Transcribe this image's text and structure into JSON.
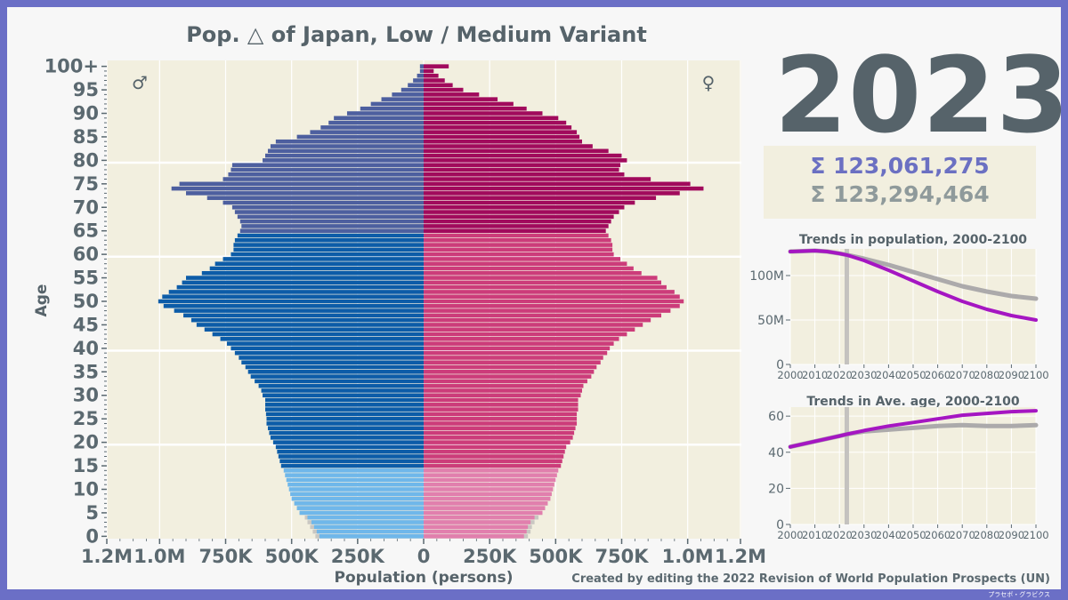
{
  "chart_data": [
    {
      "type": "population-pyramid",
      "title": "Pop. △ of Japan, Low / Medium Variant",
      "xlabel": "Population (persons)",
      "ylabel": "Age",
      "x_tick_labels": [
        "1.2M",
        "1.0M",
        "750K",
        "500K",
        "250K",
        "0",
        "250K",
        "500K",
        "750K",
        "1.0M",
        "1.2M"
      ],
      "x_tick_values": [
        -1200000,
        -1000000,
        -750000,
        -500000,
        -250000,
        0,
        250000,
        500000,
        750000,
        1000000,
        1200000
      ],
      "y_tick_labels": [
        "0",
        "5",
        "10",
        "15",
        "20",
        "25",
        "30",
        "35",
        "40",
        "45",
        "50",
        "55",
        "60",
        "65",
        "70",
        "75",
        "80",
        "85",
        "90",
        "95",
        "100+"
      ],
      "male_symbol": "♂",
      "female_symbol": "♀",
      "ages": [
        0,
        1,
        2,
        3,
        4,
        5,
        6,
        7,
        8,
        9,
        10,
        11,
        12,
        13,
        14,
        15,
        16,
        17,
        18,
        19,
        20,
        21,
        22,
        23,
        24,
        25,
        26,
        27,
        28,
        29,
        30,
        31,
        32,
        33,
        34,
        35,
        36,
        37,
        38,
        39,
        40,
        41,
        42,
        43,
        44,
        45,
        46,
        47,
        48,
        49,
        50,
        51,
        52,
        53,
        54,
        55,
        56,
        57,
        58,
        59,
        60,
        61,
        62,
        63,
        64,
        65,
        66,
        67,
        68,
        69,
        70,
        71,
        72,
        73,
        74,
        75,
        76,
        77,
        78,
        79,
        80,
        81,
        82,
        83,
        84,
        85,
        86,
        87,
        88,
        89,
        90,
        91,
        92,
        93,
        94,
        95,
        96,
        97,
        98,
        99,
        100
      ],
      "male": [
        410000,
        420000,
        430000,
        440000,
        450000,
        470000,
        480000,
        490000,
        500000,
        505000,
        510000,
        515000,
        520000,
        525000,
        530000,
        540000,
        545000,
        550000,
        555000,
        560000,
        570000,
        580000,
        585000,
        590000,
        595000,
        595000,
        597000,
        600000,
        600000,
        600000,
        610000,
        615000,
        625000,
        640000,
        655000,
        665000,
        675000,
        690000,
        700000,
        715000,
        730000,
        745000,
        770000,
        800000,
        830000,
        860000,
        880000,
        910000,
        945000,
        985000,
        1005000,
        990000,
        965000,
        935000,
        915000,
        900000,
        840000,
        810000,
        790000,
        760000,
        730000,
        720000,
        720000,
        715000,
        705000,
        695000,
        690000,
        695000,
        705000,
        715000,
        725000,
        760000,
        820000,
        900000,
        955000,
        925000,
        760000,
        740000,
        730000,
        725000,
        610000,
        600000,
        590000,
        580000,
        560000,
        480000,
        430000,
        390000,
        360000,
        340000,
        290000,
        240000,
        200000,
        160000,
        120000,
        85000,
        60000,
        40000,
        25000,
        14000,
        14000
      ],
      "female": [
        395000,
        405000,
        410000,
        420000,
        435000,
        450000,
        460000,
        470000,
        480000,
        485000,
        490000,
        495000,
        500000,
        505000,
        510000,
        520000,
        525000,
        530000,
        535000,
        540000,
        555000,
        565000,
        570000,
        575000,
        580000,
        580000,
        580000,
        585000,
        585000,
        585000,
        595000,
        600000,
        605000,
        620000,
        635000,
        645000,
        655000,
        670000,
        680000,
        695000,
        705000,
        720000,
        740000,
        770000,
        800000,
        830000,
        860000,
        900000,
        935000,
        970000,
        985000,
        970000,
        950000,
        920000,
        900000,
        885000,
        825000,
        795000,
        770000,
        745000,
        720000,
        715000,
        715000,
        710000,
        700000,
        690000,
        700000,
        710000,
        720000,
        740000,
        760000,
        800000,
        880000,
        970000,
        1060000,
        1010000,
        860000,
        760000,
        740000,
        745000,
        770000,
        750000,
        700000,
        640000,
        600000,
        590000,
        580000,
        560000,
        540000,
        510000,
        450000,
        390000,
        340000,
        280000,
        210000,
        150000,
        110000,
        80000,
        56000,
        38000,
        95000
      ],
      "male_low": [
        395000,
        405000,
        415000,
        425000,
        440000,
        470000,
        480000,
        490000,
        500000,
        505000
      ],
      "female_low": [
        380000,
        390000,
        395000,
        405000,
        420000,
        450000,
        460000,
        470000,
        480000,
        485000
      ]
    },
    {
      "type": "line",
      "title": "Trends in population, 2000-2100",
      "x_tick_labels": [
        "2000",
        "2010",
        "2020",
        "2030",
        "2040",
        "2050",
        "2060",
        "2070",
        "2080",
        "2090",
        "2100"
      ],
      "y_tick_labels": [
        "0",
        "50M",
        "100M"
      ],
      "xlim": [
        2000,
        2100
      ],
      "ylim": [
        0,
        130000000
      ],
      "marker_year": 2023,
      "series": [
        {
          "name": "Medium",
          "x": [
            2000,
            2010,
            2015,
            2020,
            2023,
            2030,
            2040,
            2050,
            2060,
            2070,
            2080,
            2090,
            2100
          ],
          "values": [
            127000000,
            128000000,
            127000000,
            124800000,
            123294464,
            119000000,
            112000000,
            104000000,
            96000000,
            88000000,
            82000000,
            77000000,
            74000000
          ]
        },
        {
          "name": "Low",
          "x": [
            2000,
            2010,
            2015,
            2020,
            2023,
            2030,
            2040,
            2050,
            2060,
            2070,
            2080,
            2090,
            2100
          ],
          "values": [
            127000000,
            128000000,
            127000000,
            124800000,
            123061275,
            117000000,
            106000000,
            94000000,
            82000000,
            71000000,
            62000000,
            55000000,
            50000000
          ]
        }
      ]
    },
    {
      "type": "line",
      "title": "Trends in Ave. age, 2000-2100",
      "x_tick_labels": [
        "2000",
        "2010",
        "2020",
        "2030",
        "2040",
        "2050",
        "2060",
        "2070",
        "2080",
        "2090",
        "2100"
      ],
      "y_tick_labels": [
        "0",
        "20",
        "40",
        "60"
      ],
      "xlim": [
        2000,
        2100
      ],
      "ylim": [
        0,
        65
      ],
      "marker_year": 2023,
      "series": [
        {
          "name": "Medium",
          "x": [
            2000,
            2010,
            2020,
            2023,
            2030,
            2040,
            2050,
            2060,
            2070,
            2080,
            2090,
            2100
          ],
          "values": [
            43,
            46,
            49,
            50,
            51.5,
            52.5,
            53.5,
            54.5,
            55,
            54.5,
            54.5,
            55
          ]
        },
        {
          "name": "Low",
          "x": [
            2000,
            2010,
            2020,
            2023,
            2030,
            2040,
            2050,
            2060,
            2070,
            2080,
            2090,
            2100
          ],
          "values": [
            43,
            46,
            49,
            50,
            52,
            54.5,
            56.5,
            58.5,
            60.5,
            61.5,
            62.5,
            63
          ]
        }
      ]
    }
  ],
  "year": "2023",
  "sum_low": "Σ  123,061,275",
  "sum_medium": "Σ  123,294,464",
  "credit": "Created by editing the 2022 Revision of World Population Prospects (UN)",
  "logo": "プラセボ・グラビクス",
  "colors": {
    "frame": "#6b6fc6",
    "plot_bg": "#f2efdf",
    "accent_purple": "#a516c2",
    "medium_gray": "#b0aeb0"
  }
}
